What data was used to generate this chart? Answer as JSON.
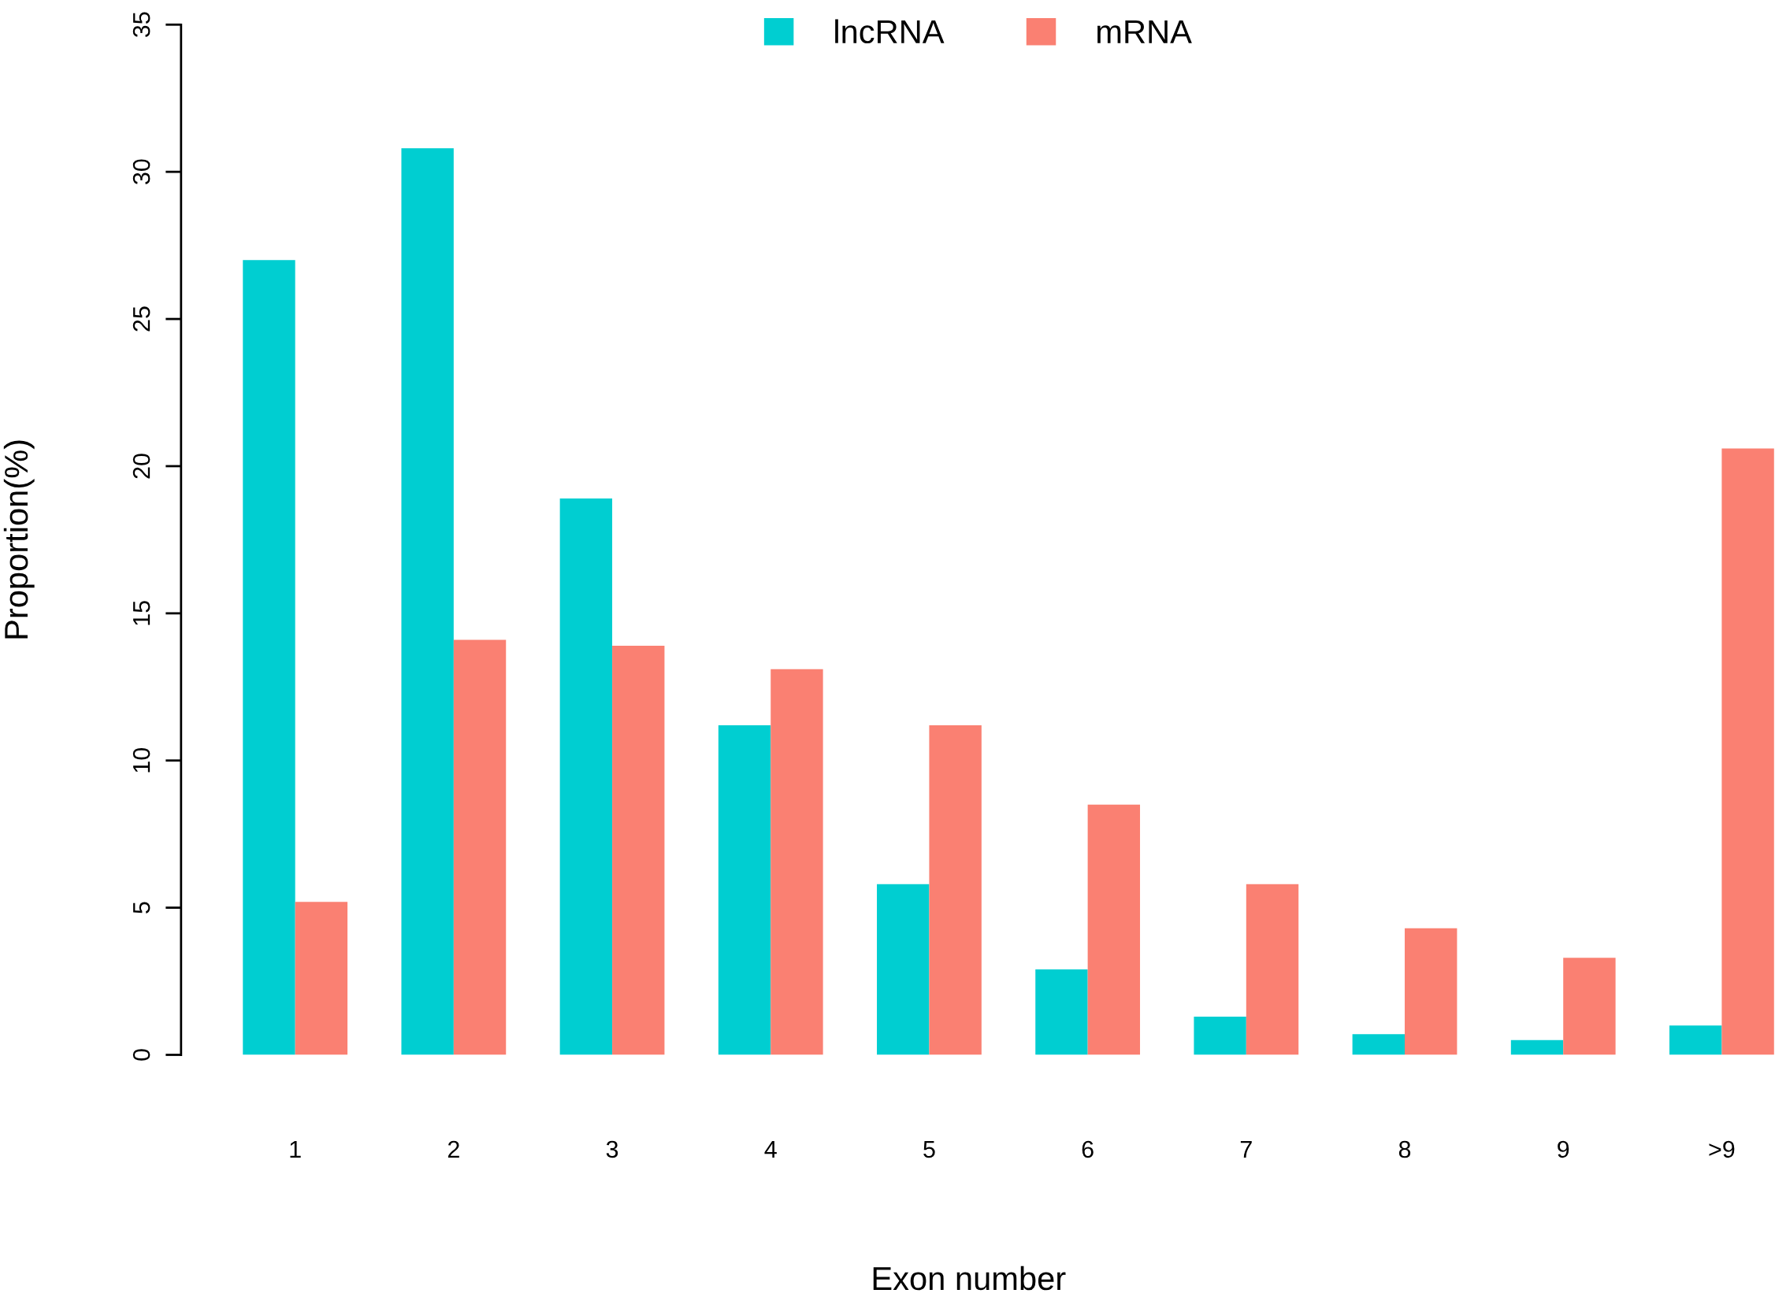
{
  "chart_data": {
    "type": "bar",
    "xlabel": "Exon number",
    "ylabel": "Proportion(%)",
    "categories": [
      "1",
      "2",
      "3",
      "4",
      "5",
      "6",
      "7",
      "8",
      "9",
      ">9"
    ],
    "series": [
      {
        "name": "lncRNA",
        "color": "#00ced1",
        "values": [
          27.0,
          30.8,
          18.9,
          11.2,
          5.8,
          2.9,
          1.3,
          0.7,
          0.5,
          1.0
        ]
      },
      {
        "name": "mRNA",
        "color": "#fa8072",
        "values": [
          5.2,
          14.1,
          13.9,
          13.1,
          11.2,
          8.5,
          5.8,
          4.3,
          3.3,
          20.6
        ]
      }
    ],
    "ylim": [
      0,
      35
    ],
    "yticks": [
      0,
      5,
      10,
      15,
      20,
      25,
      30,
      35
    ],
    "grid": false,
    "legend": "top"
  }
}
